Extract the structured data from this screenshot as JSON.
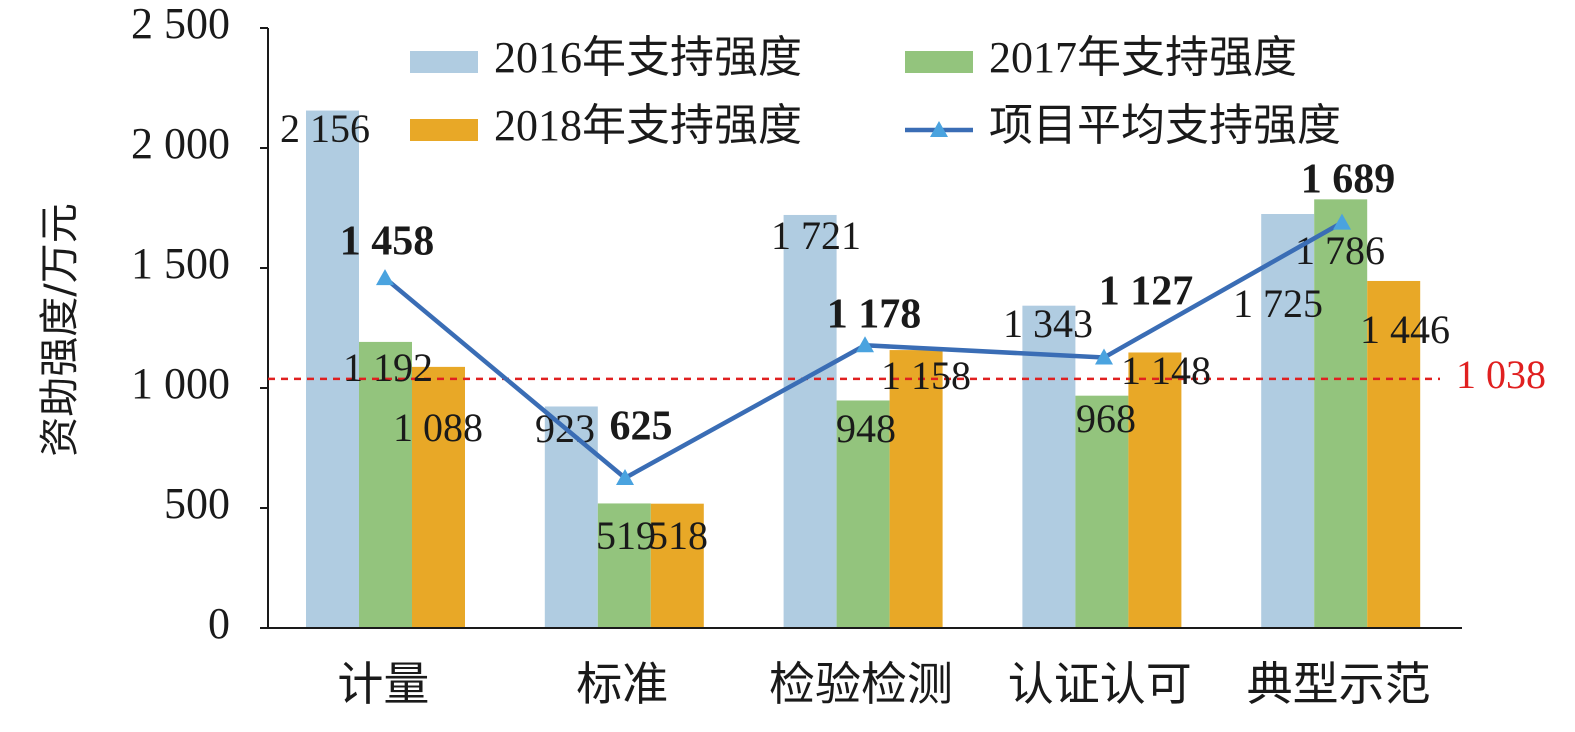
{
  "chart_data": {
    "type": "bar",
    "ylabel": "资助强度/万元",
    "ylim": [
      0,
      2500
    ],
    "yticks": [
      0,
      500,
      1000,
      1500,
      2000,
      2500
    ],
    "ytick_labels": [
      "0",
      "500",
      "1 000",
      "1 500",
      "2 000",
      "2 500"
    ],
    "categories": [
      "计量",
      "标准",
      "检验检测",
      "认证认可",
      "典型示范"
    ],
    "series": [
      {
        "name": "2016年支持强度",
        "type": "bar",
        "color": "#b0cce1",
        "values": [
          2156,
          923,
          1721,
          1343,
          1725
        ],
        "labels": [
          "2 156",
          "923",
          "1 721",
          "1 343",
          "1 725"
        ]
      },
      {
        "name": "2017年支持强度",
        "type": "bar",
        "color": "#93c47d",
        "values": [
          1192,
          519,
          948,
          968,
          1786
        ],
        "labels": [
          "1 192",
          "519",
          "948",
          "968",
          "1 786"
        ]
      },
      {
        "name": "2018年支持强度",
        "type": "bar",
        "color": "#e8a827",
        "values": [
          1088,
          518,
          1158,
          1148,
          1446
        ],
        "labels": [
          "1 088",
          "518",
          "1 158",
          "1 148",
          "1 446"
        ]
      },
      {
        "name": "项目平均支持强度",
        "type": "line",
        "color": "#3a6db5",
        "marker_color": "#4aa3df",
        "values": [
          1458,
          625,
          1178,
          1127,
          1689
        ],
        "labels": [
          "1 458",
          "625",
          "1 178",
          "1 127",
          "1 689"
        ]
      }
    ],
    "reference_line": {
      "value": 1038,
      "label": "1 038",
      "color": "#e02020",
      "style": "dashed"
    },
    "legend": {
      "position": "top"
    },
    "grid": false
  }
}
